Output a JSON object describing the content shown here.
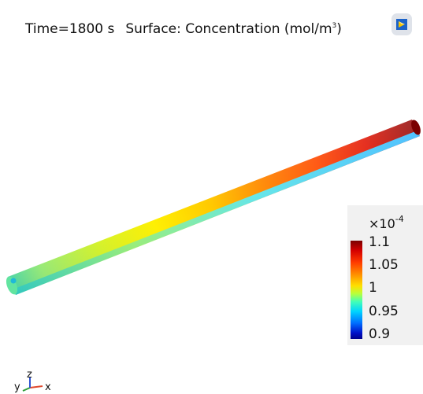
{
  "header": {
    "time_label": "Time=1800 s",
    "surface_label": "Surface: Concentration (mol/m",
    "unit_exponent": "3",
    "unit_close": ")"
  },
  "colorbar": {
    "multiplier": "×10",
    "exponent": "-4",
    "ticks": [
      "1.1",
      "1.05",
      "1",
      "0.95",
      "0.9"
    ]
  },
  "axes": {
    "y": "y",
    "z": "z",
    "x": "x"
  },
  "colors": {
    "axis_x": "#e04a2f",
    "axis_y": "#2f9e3a",
    "axis_z": "#2f55d4",
    "logo_accent": "#1c63c9"
  },
  "icons": {
    "logo": "comsol-logo-icon"
  }
}
